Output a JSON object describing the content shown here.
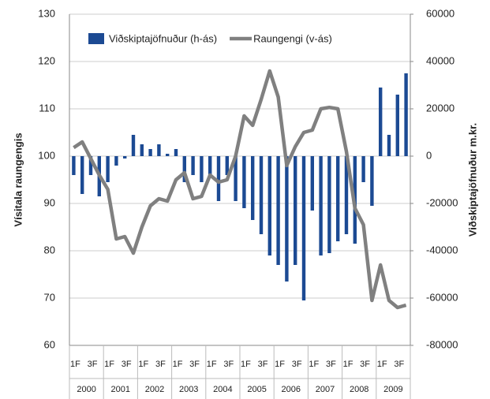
{
  "chart_data": {
    "type": "bar-line",
    "y_label": "Vísitala raungengis",
    "y2_label": "Viðskiptajöfnuður m.kr.",
    "categories": [
      "1F",
      null,
      "3F",
      null,
      "1F",
      null,
      "3F",
      null,
      "1F",
      null,
      "3F",
      null,
      "1F",
      null,
      "3F",
      null,
      "1F",
      null,
      "3F",
      null,
      "1F",
      null,
      "3F",
      null,
      "1F",
      null,
      "3F",
      null,
      "1F",
      null,
      "3F",
      null,
      "1F",
      null,
      "3F",
      null,
      "1F",
      null,
      "3F",
      null
    ],
    "years": [
      "2000",
      "2001",
      "2002",
      "2003",
      "2004",
      "2005",
      "2006",
      "2007",
      "2008",
      "2009"
    ],
    "ylim": [
      60,
      130
    ],
    "yticks": [
      60,
      70,
      80,
      90,
      100,
      110,
      120,
      130
    ],
    "y2lim": [
      -80000,
      60000
    ],
    "y2ticks": [
      -80000,
      -60000,
      -40000,
      -20000,
      0,
      20000,
      40000,
      60000
    ],
    "grid": true,
    "series": [
      {
        "name": "Viðskiptajöfnuður (h-ás)",
        "kind": "bar",
        "axis": "y2",
        "color": "#1c4a93",
        "values": [
          -8000,
          -16000,
          -8000,
          -17000,
          -11000,
          -4000,
          -1000,
          9000,
          5000,
          3000,
          5000,
          1000,
          3000,
          -11000,
          -8000,
          -11000,
          -8000,
          -19000,
          -8000,
          -19000,
          -22000,
          -27000,
          -33000,
          -42000,
          -46000,
          -53000,
          -46000,
          -61000,
          -23000,
          -42000,
          -41000,
          -36000,
          -33000,
          -37000,
          -11000,
          -21000,
          29000,
          9000,
          26000,
          35000
        ]
      },
      {
        "name": "Raungengi (v-ás)",
        "kind": "line",
        "color": "#808080",
        "values": [
          101.8,
          103,
          99.5,
          96,
          93,
          82.5,
          83,
          79.5,
          85,
          89.5,
          91,
          90.5,
          95,
          96.5,
          91,
          91.5,
          96,
          94.5,
          95,
          100,
          108.5,
          106.5,
          112,
          118,
          112.5,
          98,
          102,
          105,
          105.5,
          110,
          110.3,
          110,
          101,
          89,
          85.5,
          69.5,
          77,
          69.5,
          68,
          68.5
        ]
      }
    ]
  }
}
